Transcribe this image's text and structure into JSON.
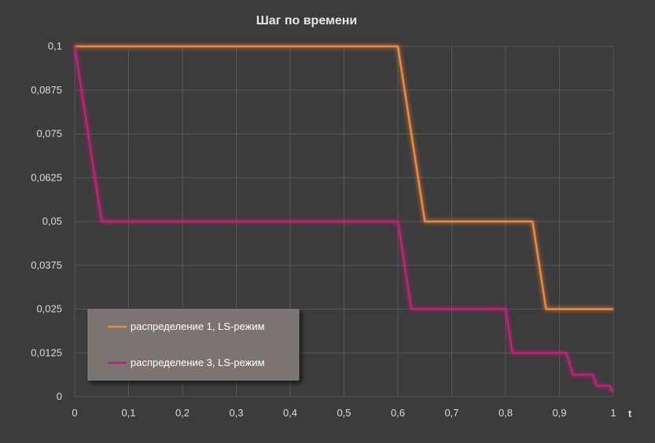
{
  "chart_data": {
    "type": "line",
    "title": "Шаг по времени",
    "xlabel": "t",
    "ylabel": "",
    "xlim": [
      0,
      1
    ],
    "ylim": [
      0,
      0.1
    ],
    "x_ticks": [
      "0",
      "0,1",
      "0,2",
      "0,3",
      "0,4",
      "0,5",
      "0,6",
      "0,7",
      "0,8",
      "0,9",
      "1"
    ],
    "y_ticks": [
      "0",
      "0,0125",
      "0,025",
      "0,0375",
      "0,05",
      "0,0625",
      "0,075",
      "0,0875",
      "0,1"
    ],
    "grid": true,
    "legend_position": "bottom-left",
    "series": [
      {
        "name": "распределение 1, LS-режим",
        "color": "#f0893a",
        "x": [
          0,
          0.6,
          0.65,
          0.85,
          0.875,
          1
        ],
        "y": [
          0.1,
          0.1,
          0.05,
          0.05,
          0.025,
          0.025
        ]
      },
      {
        "name": "распределение 3, LS-режим",
        "color": "#c0207a",
        "x": [
          0,
          0.05,
          0.6,
          0.625,
          0.8,
          0.8125,
          0.9125,
          0.925,
          0.9625,
          0.9688,
          0.9937,
          0.9969,
          1
        ],
        "y": [
          0.1,
          0.05,
          0.05,
          0.025,
          0.025,
          0.0125,
          0.0125,
          0.00625,
          0.00625,
          0.003125,
          0.003125,
          0.0015625,
          0.0015625
        ]
      }
    ]
  }
}
